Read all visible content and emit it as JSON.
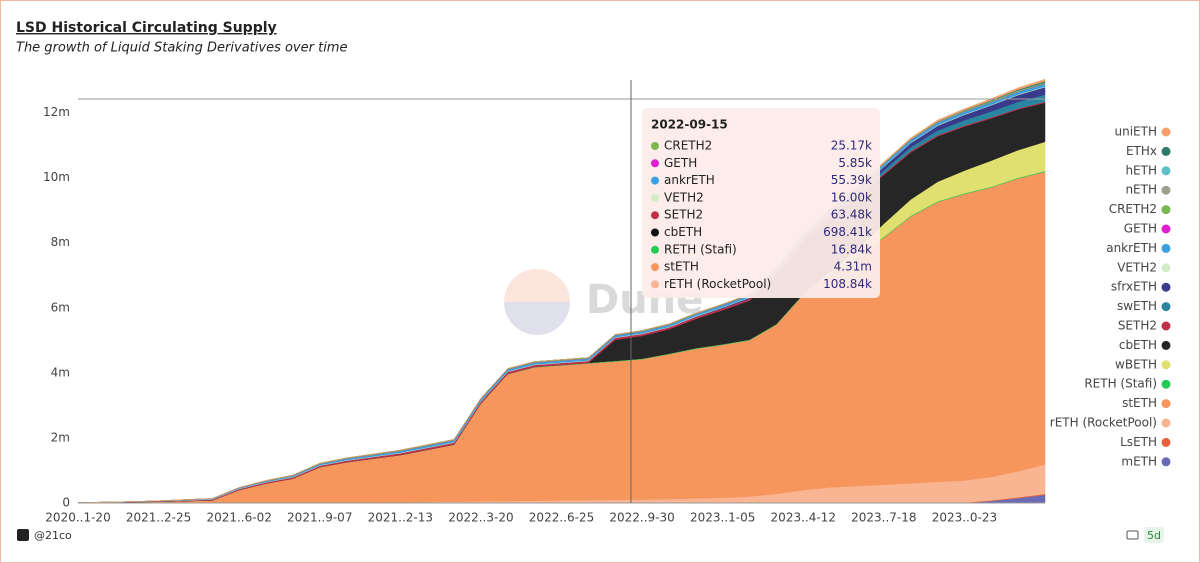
{
  "chart_data": {
    "type": "area",
    "stacked": true,
    "title": "LSD Historical Circulating Supply",
    "subtitle": "The growth of Liquid Staking Derivatives over time",
    "watermark": "Dune",
    "categories": [
      "2020..1-20",
      null,
      null,
      "2021..2-25",
      null,
      null,
      "2021..6-02",
      null,
      null,
      "2021..9-07",
      null,
      null,
      "2021..2-13",
      null,
      null,
      "2022..3-20",
      null,
      null,
      "2022..6-25",
      null,
      null,
      "2022..9-30",
      null,
      null,
      "2023..1-05",
      null,
      null,
      "2023..4-12",
      null,
      null,
      "2023..7-18",
      null,
      null,
      "2023..0-23",
      null,
      null,
      null
    ],
    "ylim": [
      0,
      13000000
    ],
    "yticks": [
      0,
      {
        "value": 2000000,
        "label": "2m"
      },
      {
        "value": 4000000,
        "label": "4m"
      },
      {
        "value": 6000000,
        "label": "6m"
      },
      {
        "value": 8000000,
        "label": "8m"
      },
      {
        "value": 10000000,
        "label": "10m"
      },
      {
        "value": 12000000,
        "label": "12m"
      }
    ],
    "grid": false,
    "legend": "right",
    "series": [
      {
        "name": "uniETH",
        "color": "#f4a06a",
        "values": [
          0,
          0,
          0,
          0,
          0,
          0,
          0,
          0,
          0,
          0,
          0,
          0,
          0,
          0,
          0,
          0,
          0,
          0,
          0,
          0,
          0,
          0,
          0,
          0,
          0,
          5000,
          10000,
          15000,
          20000,
          25000,
          30000,
          35000,
          40000,
          45000,
          50000,
          55000,
          60000
        ]
      },
      {
        "name": "ETHx",
        "color": "#2e7a6a",
        "values": [
          0,
          0,
          0,
          0,
          0,
          0,
          0,
          0,
          0,
          0,
          0,
          0,
          0,
          0,
          0,
          0,
          0,
          0,
          0,
          0,
          0,
          0,
          0,
          0,
          0,
          0,
          0,
          0,
          0,
          0,
          0,
          0,
          5000,
          10000,
          20000,
          30000,
          40000
        ]
      },
      {
        "name": "hETH",
        "color": "#5bc0c8",
        "values": [
          0,
          0,
          0,
          0,
          0,
          0,
          0,
          0,
          0,
          0,
          0,
          0,
          0,
          0,
          0,
          0,
          0,
          0,
          0,
          0,
          0,
          0,
          0,
          0,
          0,
          0,
          0,
          0,
          0,
          0,
          0,
          1000,
          2000,
          3000,
          4000,
          5000,
          6000
        ]
      },
      {
        "name": "nETH",
        "color": "#a0a090",
        "values": [
          0,
          0,
          0,
          0,
          0,
          0,
          0,
          0,
          0,
          0,
          0,
          0,
          0,
          0,
          0,
          0,
          0,
          0,
          0,
          0,
          0,
          0,
          0,
          0,
          0,
          0,
          0,
          0,
          0,
          0,
          1000,
          2000,
          3000,
          4000,
          5000,
          6000,
          7000
        ]
      },
      {
        "name": "CRETH2",
        "color": "#7ab84e",
        "values": [
          0,
          0,
          0,
          2000,
          5000,
          8000,
          12000,
          15000,
          18000,
          20000,
          22000,
          24000,
          24000,
          24000,
          24000,
          24000,
          24000,
          24000,
          24000,
          24000,
          24000,
          25170,
          25000,
          25000,
          25000,
          25000,
          25000,
          25000,
          25000,
          25000,
          25000,
          25000,
          25000,
          25000,
          25000,
          25000,
          25000
        ]
      },
      {
        "name": "GETH",
        "color": "#e020d0",
        "values": [
          0,
          0,
          0,
          0,
          0,
          0,
          1000,
          2000,
          3000,
          4000,
          5000,
          5600,
          5600,
          5600,
          5600,
          5600,
          5600,
          5600,
          5600,
          5600,
          5600,
          5850,
          5900,
          5900,
          5900,
          5900,
          5900,
          5900,
          5900,
          5900,
          5900,
          5900,
          5900,
          5900,
          5900,
          5900,
          5900
        ]
      },
      {
        "name": "ankrETH",
        "color": "#3ba0e0",
        "values": [
          0,
          0,
          0,
          5000,
          10000,
          15000,
          20000,
          25000,
          30000,
          35000,
          40000,
          45000,
          50000,
          52000,
          54000,
          55000,
          55000,
          55000,
          55000,
          55000,
          55000,
          55390,
          56000,
          57000,
          58000,
          60000,
          62000,
          64000,
          66000,
          68000,
          70000,
          72000,
          74000,
          76000,
          78000,
          80000,
          82000
        ]
      },
      {
        "name": "VETH2",
        "color": "#d4ecc8",
        "values": [
          0,
          2000,
          4000,
          6000,
          8000,
          10000,
          12000,
          14000,
          16000,
          16000,
          16000,
          16000,
          16000,
          16000,
          16000,
          16000,
          16000,
          16000,
          16000,
          16000,
          16000,
          16000,
          16000,
          16000,
          16000,
          16000,
          16000,
          16000,
          16000,
          16000,
          16000,
          16000,
          16000,
          16000,
          16000,
          16000,
          16000
        ]
      },
      {
        "name": "sfrxETH",
        "color": "#3a3a8a",
        "values": [
          0,
          0,
          0,
          0,
          0,
          0,
          0,
          0,
          0,
          0,
          0,
          0,
          0,
          0,
          0,
          0,
          0,
          0,
          0,
          0,
          0,
          0,
          0,
          10000,
          20000,
          30000,
          40000,
          50000,
          70000,
          90000,
          110000,
          130000,
          150000,
          170000,
          190000,
          210000,
          230000
        ]
      },
      {
        "name": "swETH",
        "color": "#2a86a0",
        "values": [
          0,
          0,
          0,
          0,
          0,
          0,
          0,
          0,
          0,
          0,
          0,
          0,
          0,
          0,
          0,
          0,
          0,
          0,
          0,
          0,
          0,
          0,
          0,
          0,
          0,
          0,
          0,
          20000,
          50000,
          80000,
          100000,
          120000,
          140000,
          160000,
          180000,
          200000,
          220000
        ]
      },
      {
        "name": "SETH2",
        "color": "#c0304a",
        "values": [
          0,
          5000,
          10000,
          15000,
          20000,
          25000,
          30000,
          35000,
          40000,
          45000,
          50000,
          52000,
          54000,
          56000,
          58000,
          60000,
          61000,
          62000,
          62500,
          63000,
          63200,
          63480,
          63000,
          62000,
          60000,
          58000,
          55000,
          50000,
          45000,
          42000,
          40000,
          38000,
          36000,
          34000,
          32000,
          31000,
          30000
        ]
      },
      {
        "name": "cbETH",
        "color": "#262626",
        "values": [
          0,
          0,
          0,
          0,
          0,
          0,
          0,
          0,
          0,
          0,
          0,
          0,
          0,
          0,
          0,
          0,
          0,
          0,
          0,
          0,
          650000,
          698410,
          750000,
          900000,
          1050000,
          1200000,
          1500000,
          1600000,
          1650000,
          1600000,
          1500000,
          1450000,
          1400000,
          1350000,
          1300000,
          1250000,
          1200000
        ]
      },
      {
        "name": "wBETH",
        "color": "#e0e070",
        "values": [
          0,
          0,
          0,
          0,
          0,
          0,
          0,
          0,
          0,
          0,
          0,
          0,
          0,
          0,
          0,
          0,
          0,
          0,
          0,
          0,
          0,
          0,
          0,
          0,
          0,
          0,
          0,
          0,
          100000,
          250000,
          400000,
          500000,
          600000,
          700000,
          800000,
          850000,
          900000
        ]
      },
      {
        "name": "RETH (Stafi)",
        "color": "#22cc55",
        "values": [
          0,
          0,
          0,
          0,
          0,
          0,
          0,
          0,
          0,
          2000,
          3000,
          4000,
          5000,
          6000,
          8000,
          10000,
          12000,
          13000,
          14000,
          15000,
          16000,
          16840,
          17000,
          18000,
          18000,
          19000,
          19000,
          20000,
          20000,
          20000,
          21000,
          21000,
          21000,
          22000,
          22000,
          22000,
          22000
        ]
      },
      {
        "name": "stETH",
        "color": "#f7965c",
        "values": [
          10000,
          20000,
          30000,
          40000,
          60000,
          80000,
          400000,
          600000,
          750000,
          1100000,
          1250000,
          1350000,
          1450000,
          1600000,
          1750000,
          3000000,
          3900000,
          4100000,
          4150000,
          4200000,
          4250000,
          4310000,
          4450000,
          4600000,
          4700000,
          4800000,
          5200000,
          6000000,
          6500000,
          7000000,
          7600000,
          8200000,
          8600000,
          8800000,
          8900000,
          9000000,
          9000000
        ]
      },
      {
        "name": "rETH (RocketPool)",
        "color": "#f9b592",
        "values": [
          0,
          0,
          0,
          0,
          0,
          0,
          0,
          0,
          0,
          0,
          0,
          10000,
          20000,
          30000,
          40000,
          50000,
          60000,
          70000,
          80000,
          90000,
          100000,
          108840,
          120000,
          140000,
          160000,
          200000,
          280000,
          400000,
          480000,
          520000,
          560000,
          600000,
          640000,
          680000,
          720000,
          800000,
          900000
        ]
      },
      {
        "name": "LsETH",
        "color": "#e8603c",
        "values": [
          0,
          0,
          0,
          0,
          0,
          0,
          0,
          0,
          0,
          0,
          0,
          0,
          0,
          0,
          0,
          0,
          0,
          0,
          0,
          0,
          0,
          0,
          0,
          0,
          0,
          0,
          0,
          0,
          0,
          0,
          0,
          5000,
          10000,
          15000,
          20000,
          25000,
          30000
        ]
      },
      {
        "name": "mETH",
        "color": "#6b6bb5",
        "values": [
          0,
          0,
          0,
          0,
          0,
          0,
          0,
          0,
          0,
          0,
          0,
          0,
          0,
          0,
          0,
          0,
          0,
          0,
          0,
          0,
          0,
          0,
          0,
          0,
          0,
          0,
          0,
          0,
          0,
          0,
          0,
          0,
          0,
          0,
          60000,
          150000,
          250000
        ]
      }
    ]
  },
  "tooltip": {
    "title": "2022-09-15",
    "rows": [
      {
        "name": "CRETH2",
        "color": "#7ab84e",
        "value": 25170,
        "label": "25.17k"
      },
      {
        "name": "GETH",
        "color": "#e020d0",
        "value": 5850,
        "label": "5.85k"
      },
      {
        "name": "ankrETH",
        "color": "#3ba0e0",
        "value": 55390,
        "label": "55.39k"
      },
      {
        "name": "VETH2",
        "color": "#d4ecc8",
        "value": 16000,
        "label": "16.00k"
      },
      {
        "name": "SETH2",
        "color": "#c0304a",
        "value": 63480,
        "label": "63.48k"
      },
      {
        "name": "cbETH",
        "color": "#111111",
        "value": 698410,
        "label": "698.41k"
      },
      {
        "name": "RETH (Stafi)",
        "color": "#22cc55",
        "value": 16840,
        "label": "16.84k"
      },
      {
        "name": "stETH",
        "color": "#f7965c",
        "value": 4310000,
        "label": "4.31m"
      },
      {
        "name": "rETH (RocketPool)",
        "color": "#f9b592",
        "value": 108840,
        "label": "108.84k"
      }
    ]
  },
  "footer": {
    "author": "@21co",
    "refresh": "5d"
  }
}
